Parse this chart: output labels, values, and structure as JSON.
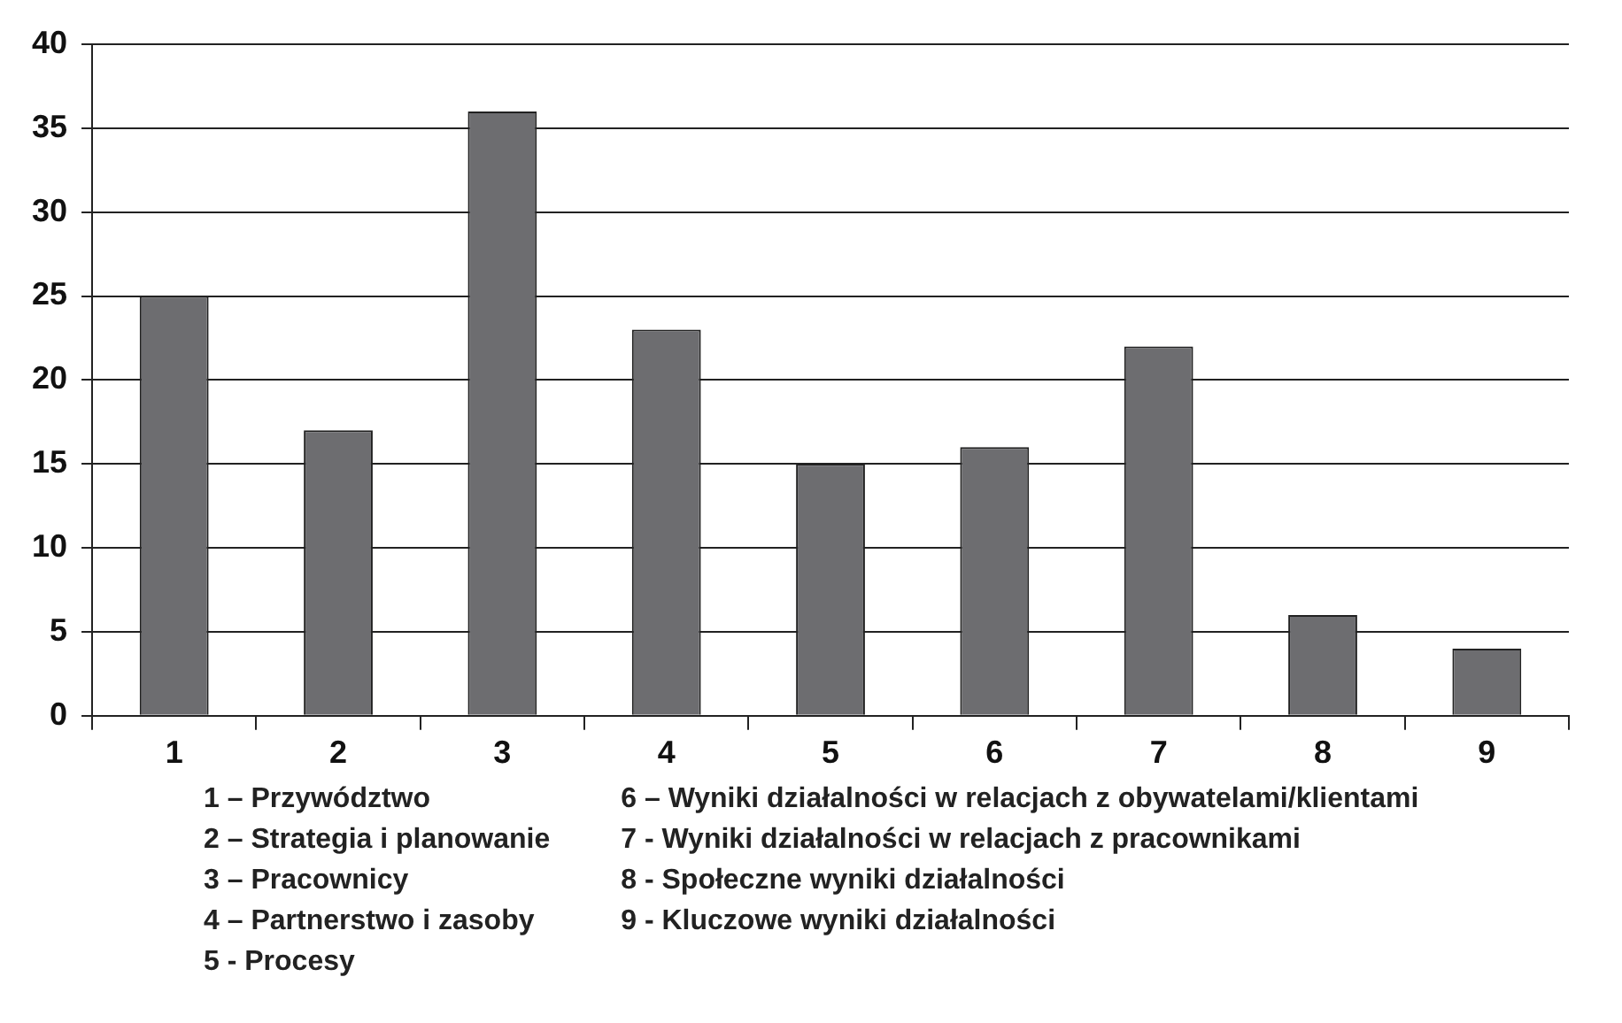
{
  "chart_data": {
    "type": "bar",
    "categories": [
      "1",
      "2",
      "3",
      "4",
      "5",
      "6",
      "7",
      "8",
      "9"
    ],
    "values": [
      25,
      17,
      36,
      23,
      15,
      16,
      22,
      6,
      4
    ],
    "color": "#6d6d70",
    "ylim": [
      0,
      40
    ],
    "yticks": [
      0,
      5,
      10,
      15,
      20,
      25,
      30,
      35,
      40
    ],
    "grid": "y",
    "legend": false,
    "annotations": [
      "1 – Przywództwo",
      "2 – Strategia i planowanie",
      "3 – Pracownicy",
      "4 – Partnerstwo i zasoby",
      "5 - Procesy",
      "6 – Wyniki działalności w relacjach z obywatelami/klientami",
      "7 - Wyniki działalności w relacjach z pracownikami",
      "8 - Społeczne wyniki działalności",
      "9 - Kluczowe wyniki działalności"
    ]
  }
}
